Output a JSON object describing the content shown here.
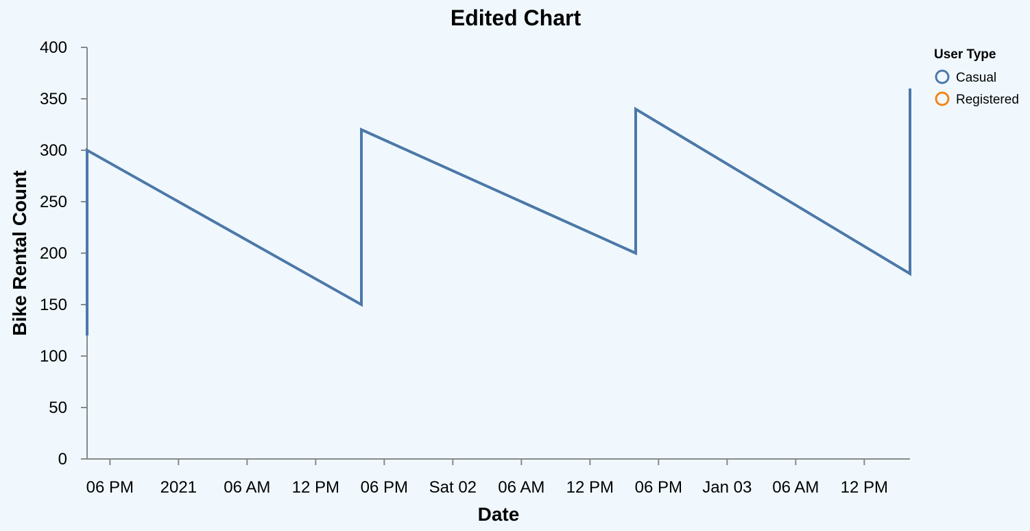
{
  "chart_data": {
    "type": "line",
    "title": "Edited Chart",
    "xlabel": "Date",
    "ylabel": "Bike Rental Count",
    "x_ticks": [
      "06 PM",
      "2021",
      "06 AM",
      "12 PM",
      "06 PM",
      "Sat 02",
      "06 AM",
      "12 PM",
      "06 PM",
      "Jan 03",
      "06 AM",
      "12 PM"
    ],
    "y_ticks": [
      0,
      50,
      100,
      150,
      200,
      250,
      300,
      350,
      400
    ],
    "ylim": [
      0,
      400
    ],
    "xlim": [
      "2020-12-31T16:00",
      "2021-01-03T16:00"
    ],
    "grid": false,
    "legend": {
      "title": "User Type",
      "placement": "top-right",
      "entries": [
        {
          "name": "Casual",
          "color": "#4c78a8"
        },
        {
          "name": "Registered",
          "color": "#f58518"
        }
      ]
    },
    "series": [
      {
        "name": "Casual",
        "color": "#4c78a8",
        "points": [
          {
            "x": "2020-12-31T16:00",
            "y": 120
          },
          {
            "x": "2020-12-31T16:00",
            "y": 300
          },
          {
            "x": "2021-01-01T16:00",
            "y": 150
          },
          {
            "x": "2021-01-01T16:00",
            "y": 320
          },
          {
            "x": "2021-01-02T16:00",
            "y": 200
          },
          {
            "x": "2021-01-02T16:00",
            "y": 340
          },
          {
            "x": "2021-01-03T16:00",
            "y": 180
          },
          {
            "x": "2021-01-03T16:00",
            "y": 360
          }
        ]
      }
    ]
  }
}
